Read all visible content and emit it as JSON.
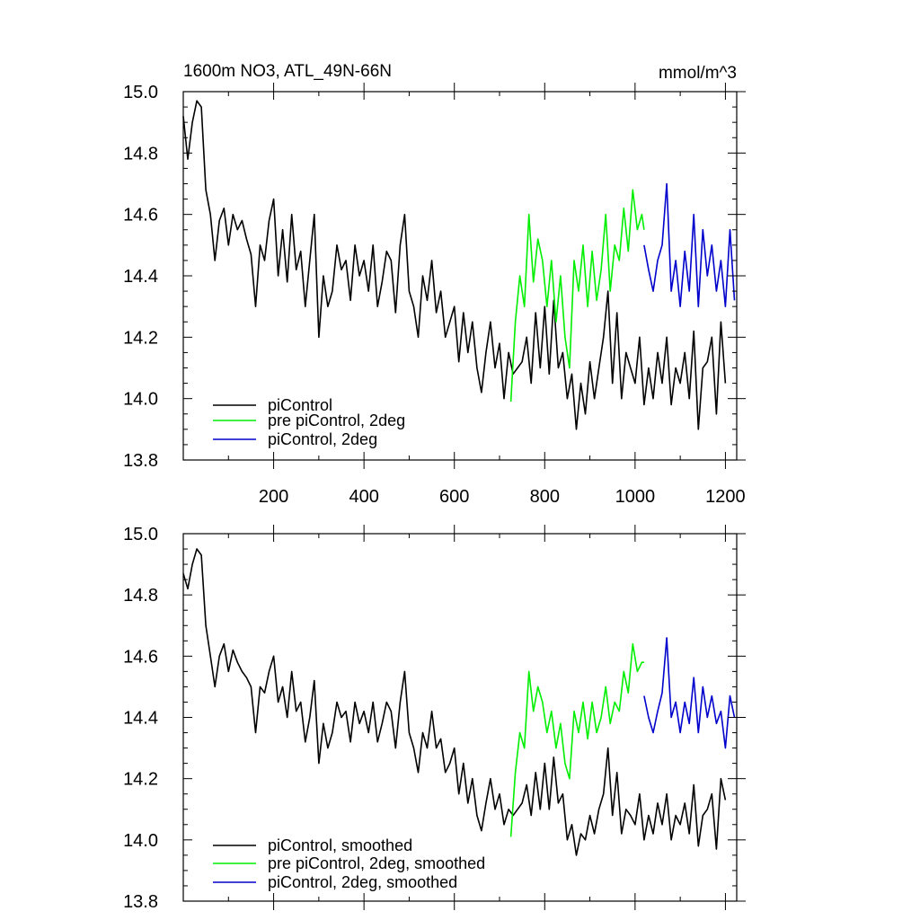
{
  "chart_data": [
    {
      "type": "line",
      "title": "1600m NO3, ATL_49N-66N",
      "units": "mmol/m^3",
      "xlim": [
        0,
        1225
      ],
      "ylim": [
        13.8,
        15.0
      ],
      "xticks": [
        200,
        400,
        600,
        800,
        1000,
        1200
      ],
      "yticks": [
        13.8,
        14.0,
        14.2,
        14.4,
        14.6,
        14.8,
        15.0
      ],
      "ytick_labels": [
        "13.8",
        "14.0",
        "14.2",
        "14.4",
        "14.6",
        "14.8",
        "15.0"
      ],
      "xtick_labels": [
        "200",
        "400",
        "600",
        "800",
        "1000",
        "1200"
      ],
      "legend_position": "bottom-left",
      "series": [
        {
          "name": "piControl",
          "color": "#000000",
          "x": [
            0,
            10,
            20,
            30,
            40,
            50,
            60,
            70,
            80,
            90,
            100,
            110,
            120,
            130,
            140,
            150,
            160,
            170,
            180,
            190,
            200,
            210,
            220,
            230,
            240,
            250,
            260,
            270,
            280,
            290,
            300,
            310,
            320,
            330,
            340,
            350,
            360,
            370,
            380,
            390,
            400,
            410,
            420,
            430,
            440,
            450,
            460,
            470,
            480,
            490,
            500,
            510,
            520,
            530,
            540,
            550,
            560,
            570,
            580,
            590,
            600,
            610,
            620,
            630,
            640,
            650,
            660,
            670,
            680,
            690,
            700,
            710,
            720,
            730,
            740,
            750,
            760,
            770,
            780,
            790,
            800,
            810,
            820,
            830,
            840,
            850,
            860,
            870,
            880,
            890,
            900,
            910,
            920,
            930,
            940,
            950,
            960,
            970,
            980,
            990,
            1000,
            1010,
            1020,
            1030,
            1040,
            1050,
            1060,
            1070,
            1080,
            1090,
            1100,
            1110,
            1120,
            1130,
            1140,
            1150,
            1160,
            1170,
            1180,
            1190,
            1200
          ],
          "y": [
            14.92,
            14.78,
            14.9,
            14.97,
            14.95,
            14.68,
            14.6,
            14.45,
            14.58,
            14.62,
            14.5,
            14.6,
            14.55,
            14.58,
            14.52,
            14.47,
            14.3,
            14.5,
            14.45,
            14.58,
            14.65,
            14.4,
            14.55,
            14.38,
            14.6,
            14.42,
            14.48,
            14.3,
            14.45,
            14.6,
            14.2,
            14.4,
            14.3,
            14.35,
            14.5,
            14.42,
            14.45,
            14.32,
            14.5,
            14.4,
            14.45,
            14.35,
            14.5,
            14.3,
            14.38,
            14.48,
            14.45,
            14.28,
            14.5,
            14.6,
            14.35,
            14.3,
            14.2,
            14.4,
            14.32,
            14.45,
            14.28,
            14.35,
            14.2,
            14.25,
            14.3,
            14.12,
            14.28,
            14.15,
            14.25,
            14.1,
            14.02,
            14.15,
            14.25,
            14.1,
            14.18,
            14.0,
            14.15,
            14.08,
            14.1,
            14.12,
            14.2,
            14.05,
            14.28,
            14.1,
            14.3,
            14.08,
            14.32,
            14.1,
            14.15,
            14.0,
            14.08,
            13.9,
            14.05,
            13.95,
            14.12,
            14.0,
            14.1,
            14.2,
            14.35,
            14.05,
            14.28,
            14.0,
            14.15,
            14.1,
            14.05,
            14.2,
            13.98,
            14.1,
            14.0,
            14.15,
            14.05,
            14.2,
            13.98,
            14.1,
            14.05,
            14.15,
            14.0,
            14.22,
            13.9,
            14.1,
            14.12,
            14.2,
            13.95,
            14.25,
            14.05
          ]
        },
        {
          "name": "pre piControl, 2deg",
          "color": "#00ee00",
          "x": [
            725,
            735,
            745,
            755,
            765,
            775,
            785,
            795,
            805,
            815,
            825,
            835,
            845,
            855,
            865,
            875,
            885,
            895,
            905,
            915,
            925,
            935,
            945,
            955,
            965,
            975,
            985,
            995,
            1005,
            1015,
            1020
          ],
          "y": [
            13.99,
            14.25,
            14.4,
            14.3,
            14.6,
            14.38,
            14.52,
            14.45,
            14.3,
            14.45,
            14.25,
            14.4,
            14.2,
            14.1,
            14.45,
            14.35,
            14.5,
            14.3,
            14.48,
            14.32,
            14.42,
            14.6,
            14.35,
            14.5,
            14.45,
            14.62,
            14.48,
            14.68,
            14.55,
            14.6,
            14.55
          ]
        },
        {
          "name": "piControl, 2deg",
          "color": "#0000cc",
          "x": [
            1020,
            1030,
            1040,
            1050,
            1060,
            1070,
            1080,
            1090,
            1100,
            1110,
            1120,
            1130,
            1140,
            1150,
            1160,
            1170,
            1180,
            1190,
            1200,
            1210,
            1220
          ],
          "y": [
            14.5,
            14.42,
            14.35,
            14.45,
            14.5,
            14.7,
            14.35,
            14.45,
            14.3,
            14.48,
            14.35,
            14.6,
            14.3,
            14.55,
            14.4,
            14.5,
            14.35,
            14.45,
            14.3,
            14.55,
            14.32
          ]
        }
      ]
    },
    {
      "type": "line",
      "xlim": [
        0,
        1225
      ],
      "ylim": [
        13.8,
        15.0
      ],
      "xticks": [
        200,
        400,
        600,
        800,
        1000,
        1200
      ],
      "yticks": [
        13.8,
        14.0,
        14.2,
        14.4,
        14.6,
        14.8,
        15.0
      ],
      "ytick_labels": [
        "13.8",
        "14.0",
        "14.2",
        "14.4",
        "14.6",
        "14.8",
        "15.0"
      ],
      "legend_position": "bottom-left",
      "series": [
        {
          "name": "piControl, smoothed",
          "color": "#000000",
          "x": [
            0,
            10,
            20,
            30,
            40,
            50,
            60,
            70,
            80,
            90,
            100,
            110,
            120,
            130,
            140,
            150,
            160,
            170,
            180,
            190,
            200,
            210,
            220,
            230,
            240,
            250,
            260,
            270,
            280,
            290,
            300,
            310,
            320,
            330,
            340,
            350,
            360,
            370,
            380,
            390,
            400,
            410,
            420,
            430,
            440,
            450,
            460,
            470,
            480,
            490,
            500,
            510,
            520,
            530,
            540,
            550,
            560,
            570,
            580,
            590,
            600,
            610,
            620,
            630,
            640,
            650,
            660,
            670,
            680,
            690,
            700,
            710,
            720,
            730,
            740,
            750,
            760,
            770,
            780,
            790,
            800,
            810,
            820,
            830,
            840,
            850,
            860,
            870,
            880,
            890,
            900,
            910,
            920,
            930,
            940,
            950,
            960,
            970,
            980,
            990,
            1000,
            1010,
            1020,
            1030,
            1040,
            1050,
            1060,
            1070,
            1080,
            1090,
            1100,
            1110,
            1120,
            1130,
            1140,
            1150,
            1160,
            1170,
            1180,
            1190,
            1200
          ],
          "y": [
            14.87,
            14.82,
            14.9,
            14.95,
            14.93,
            14.7,
            14.6,
            14.5,
            14.6,
            14.64,
            14.55,
            14.62,
            14.58,
            14.55,
            14.53,
            14.5,
            14.35,
            14.5,
            14.48,
            14.55,
            14.6,
            14.45,
            14.5,
            14.4,
            14.55,
            14.42,
            14.45,
            14.32,
            14.4,
            14.52,
            14.25,
            14.38,
            14.3,
            14.35,
            14.45,
            14.4,
            14.42,
            14.32,
            14.45,
            14.38,
            14.42,
            14.35,
            14.45,
            14.32,
            14.38,
            14.45,
            14.42,
            14.3,
            14.45,
            14.55,
            14.35,
            14.3,
            14.22,
            14.35,
            14.3,
            14.42,
            14.3,
            14.33,
            14.22,
            14.25,
            14.3,
            14.15,
            14.25,
            14.12,
            14.2,
            14.08,
            14.03,
            14.12,
            14.2,
            14.1,
            14.15,
            14.05,
            14.1,
            14.08,
            14.1,
            14.12,
            14.18,
            14.08,
            14.22,
            14.1,
            14.25,
            14.1,
            14.27,
            14.12,
            14.15,
            14.0,
            14.05,
            13.95,
            14.02,
            14.0,
            14.08,
            14.02,
            14.1,
            14.15,
            14.3,
            14.08,
            14.22,
            14.02,
            14.1,
            14.08,
            14.05,
            14.15,
            14.0,
            14.08,
            14.02,
            14.12,
            14.05,
            14.15,
            14.0,
            14.08,
            14.05,
            14.12,
            14.02,
            14.18,
            13.98,
            14.08,
            14.1,
            14.15,
            13.97,
            14.2,
            14.13
          ]
        },
        {
          "name": "pre piControl, 2deg, smoothed",
          "color": "#00ee00",
          "x": [
            725,
            735,
            745,
            755,
            765,
            775,
            785,
            795,
            805,
            815,
            825,
            835,
            845,
            855,
            865,
            875,
            885,
            895,
            905,
            915,
            925,
            935,
            945,
            955,
            965,
            975,
            985,
            995,
            1005,
            1015,
            1020
          ],
          "y": [
            14.01,
            14.22,
            14.35,
            14.3,
            14.55,
            14.42,
            14.5,
            14.45,
            14.35,
            14.42,
            14.3,
            14.38,
            14.25,
            14.2,
            14.42,
            14.35,
            14.45,
            14.33,
            14.45,
            14.35,
            14.4,
            14.5,
            14.38,
            14.45,
            14.42,
            14.55,
            14.48,
            14.64,
            14.55,
            14.58,
            14.58
          ]
        },
        {
          "name": "piControl, 2deg, smoothed",
          "color": "#0000cc",
          "x": [
            1020,
            1030,
            1040,
            1050,
            1060,
            1070,
            1080,
            1090,
            1100,
            1110,
            1120,
            1130,
            1140,
            1150,
            1160,
            1170,
            1180,
            1190,
            1200,
            1210,
            1220
          ],
          "y": [
            14.47,
            14.4,
            14.35,
            14.42,
            14.48,
            14.66,
            14.4,
            14.45,
            14.35,
            14.45,
            14.38,
            14.53,
            14.35,
            14.5,
            14.4,
            14.47,
            14.38,
            14.42,
            14.3,
            14.47,
            14.4
          ]
        }
      ]
    }
  ]
}
